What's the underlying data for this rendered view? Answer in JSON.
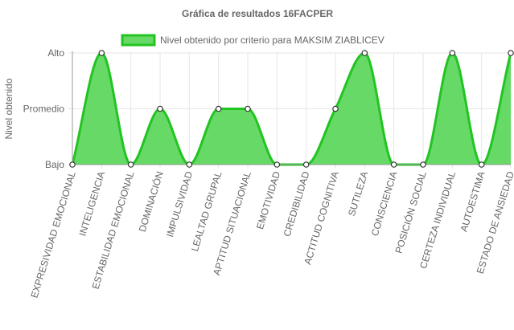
{
  "chart_data": {
    "type": "area",
    "title": "Gráfica de resultados 16FACPER",
    "ylabel": "Nivel obtenido",
    "xlabel": "",
    "legend": "top",
    "grid": true,
    "y_levels": [
      "Bajo",
      "Promedio",
      "Alto"
    ],
    "ylim": [
      0,
      2
    ],
    "categories": [
      "EXPRESIVIDAD EMOCIONAL",
      "INTELIGENCIA",
      "ESTABILIDAD EMOCIONAL",
      "DOMINACIÓN",
      "IMPULSIVIDAD",
      "LEALTAD GRUPAL",
      "APTITUD SITUACIONAL",
      "EMOTIVIDAD",
      "CREDIBILIDAD",
      "ACTITUD COGNITIVA",
      "SUTILEZA",
      "CONSCIENCIA",
      "POSICIÓN SOCIAL",
      "CERTEZA INDIVIDUAL",
      "AUTOESTIMA",
      "ESTADO DE ANSIEDAD"
    ],
    "series": [
      {
        "name": "Nivel obtenido por criterio para MAKSIM ZIABLICEV",
        "values": [
          0,
          2,
          0,
          1,
          0,
          1,
          1,
          0,
          0,
          1,
          2,
          0,
          0,
          2,
          0,
          2
        ],
        "fill": "#66d966",
        "stroke": "#22c422"
      }
    ],
    "colors": {
      "grid": "#e6e6e6",
      "axis": "#999999",
      "text": "#666666"
    }
  }
}
